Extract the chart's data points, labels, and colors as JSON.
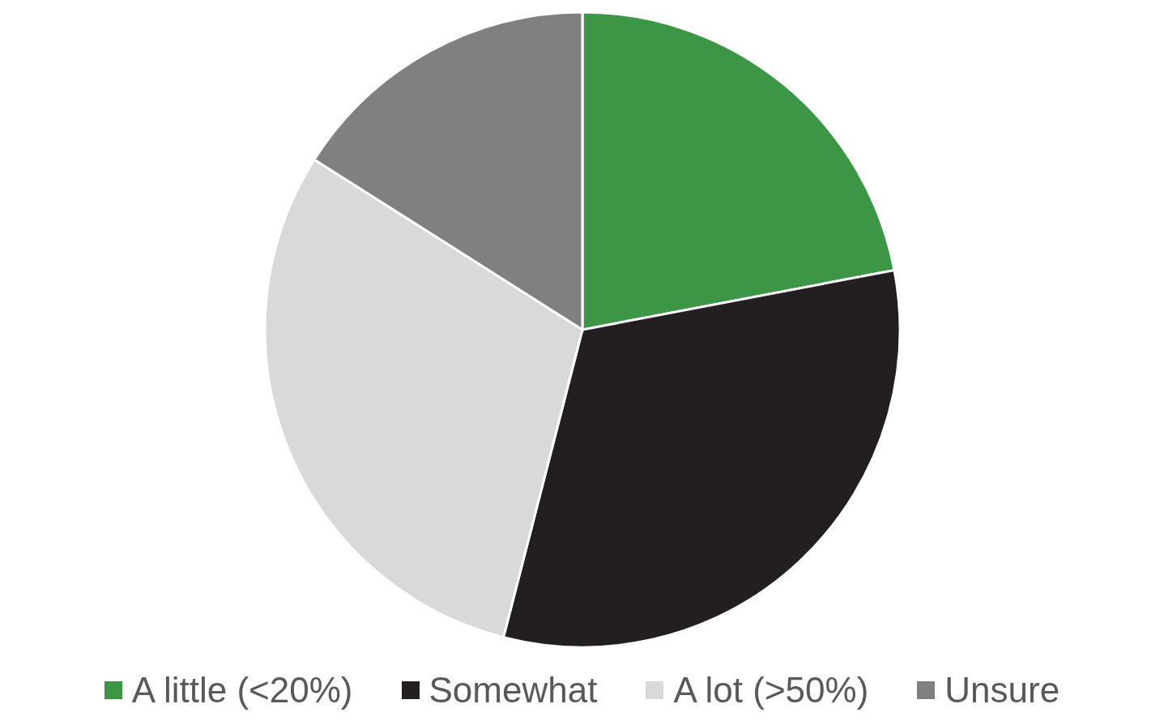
{
  "chart_data": {
    "type": "pie",
    "categories": [
      "A little (<20%)",
      "Somewhat",
      "A lot (>50%)",
      "Unsure"
    ],
    "values": [
      22,
      32,
      30,
      16
    ],
    "colors": [
      "#3d9546",
      "#231f20",
      "#d9d9d9",
      "#808080"
    ],
    "legend": "bottom"
  }
}
